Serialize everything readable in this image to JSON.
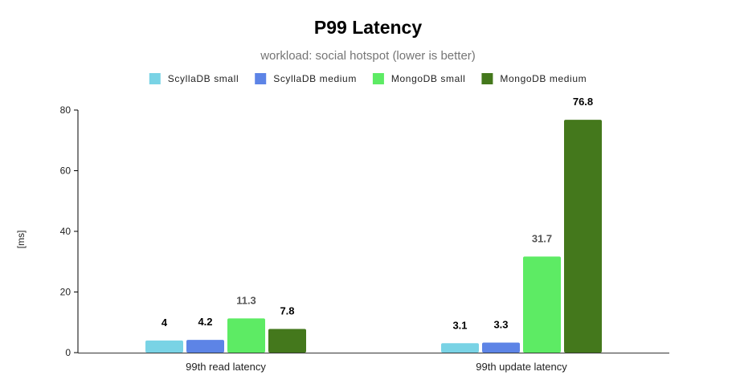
{
  "chart_data": {
    "type": "bar",
    "title": "P99 Latency",
    "subtitle": "workload: social hotspot (lower is better)",
    "xlabel": "",
    "ylabel": "[ms]",
    "categories": [
      "99th read latency",
      "99th update latency"
    ],
    "series": [
      {
        "name": "ScyllaDB small",
        "color": "#79d3e5",
        "values": [
          4,
          3.1
        ],
        "labels": [
          "4",
          "3.1"
        ],
        "label_color": "#000000"
      },
      {
        "name": "ScyllaDB medium",
        "color": "#5d84e6",
        "values": [
          4.2,
          3.3
        ],
        "labels": [
          "4.2",
          "3.3"
        ],
        "label_color": "#000000"
      },
      {
        "name": "MongoDB small",
        "color": "#5deb64",
        "values": [
          11.3,
          31.7
        ],
        "labels": [
          "11.3",
          "31.7"
        ],
        "label_color": "#555555"
      },
      {
        "name": "MongoDB medium",
        "color": "#44781c",
        "values": [
          7.8,
          76.8
        ],
        "labels": [
          "7.8",
          "76.8"
        ],
        "label_color": "#000000"
      }
    ],
    "ylim": [
      0,
      80
    ],
    "yticks": [
      "0",
      "20",
      "40",
      "60",
      "80"
    ],
    "legend_position": "top-center",
    "grid": false
  }
}
